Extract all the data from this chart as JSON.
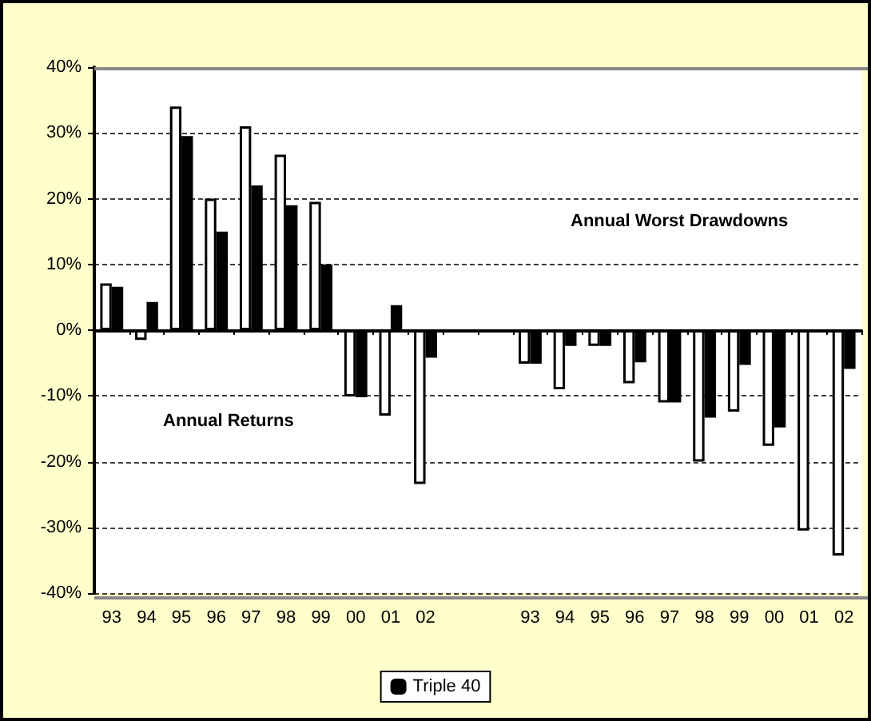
{
  "chart_data": {
    "type": "bar",
    "categories": [
      "93",
      "94",
      "95",
      "96",
      "97",
      "98",
      "99",
      "00",
      "01",
      "02",
      null,
      null,
      "93",
      "94",
      "95",
      "96",
      "97",
      "98",
      "99",
      "00",
      "01",
      "02"
    ],
    "series": [
      {
        "color": "#ffffff",
        "values": [
          7.1,
          -1.5,
          34,
          20,
          31,
          26.7,
          19.5,
          -10.1,
          -13,
          -23.4,
          null,
          null,
          -5.1,
          -9,
          -2.4,
          -8.1,
          -11,
          -20,
          -12.4,
          -17.6,
          -30.5,
          -34.3
        ]
      },
      {
        "name": "Triple 40",
        "color": "#000000",
        "values": [
          6.6,
          4.3,
          29.5,
          15,
          22,
          19,
          10,
          -10.2,
          3.8,
          -4.2,
          null,
          null,
          -5.1,
          -2.4,
          -2.4,
          -4.9,
          -11,
          -13.3,
          -5.3,
          -14.8,
          null,
          -5.9
        ]
      }
    ],
    "ylim": [
      -40,
      40
    ],
    "yticks": [
      {
        "value": -40,
        "label": "-40%"
      },
      {
        "value": -30,
        "label": "-30%"
      },
      {
        "value": -20,
        "label": "-20%"
      },
      {
        "value": -10,
        "label": "-10%"
      },
      {
        "value": 0,
        "label": "0%"
      },
      {
        "value": 10,
        "label": "10%"
      },
      {
        "value": 20,
        "label": "20%"
      },
      {
        "value": 30,
        "label": "30%"
      },
      {
        "value": 40,
        "label": "40%"
      }
    ],
    "annotations": [
      "Annual Returns",
      "Annual Worst Drawdowns"
    ],
    "grid": "y",
    "legend": "bottom"
  }
}
